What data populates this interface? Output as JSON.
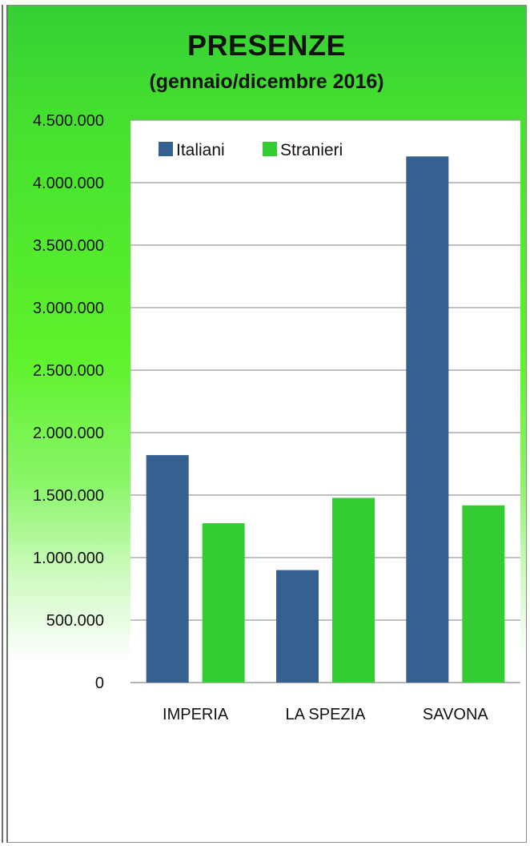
{
  "chart_data": {
    "type": "bar",
    "title": "PRESENZE",
    "subtitle": "(gennaio/dicembre 2016)",
    "categories": [
      "IMPERIA",
      "LA SPEZIA",
      "SAVONA"
    ],
    "series": [
      {
        "name": "Italiani",
        "values": [
          1820000,
          900000,
          4210000
        ],
        "color": "#36608f"
      },
      {
        "name": "Stranieri",
        "values": [
          1275000,
          1478000,
          1418000
        ],
        "color": "#33cc33"
      }
    ],
    "y_ticks": [
      "0",
      "500.000",
      "1.000.000",
      "1.500.000",
      "2.000.000",
      "2.500.000",
      "3.000.000",
      "3.500.000",
      "4.000.000",
      "4.500.000"
    ],
    "ylim": [
      0,
      4500000
    ],
    "grid": true,
    "legend_position": "top-left"
  }
}
